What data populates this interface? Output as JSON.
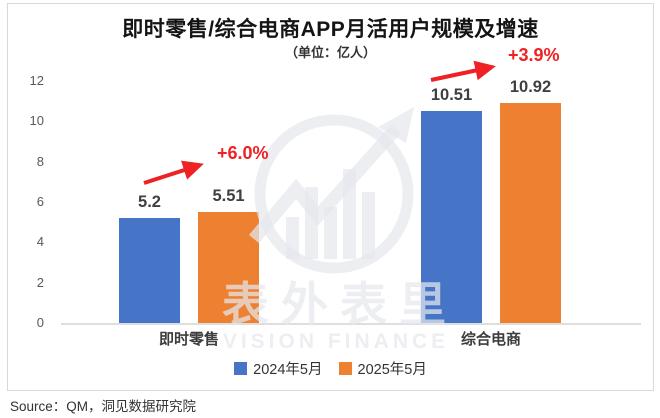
{
  "title": "即时零售/综合电商APP月活用户规模及增速",
  "subtitle": "（单位：亿人）",
  "source": "Source：QM，洞见数据研究院",
  "watermark": {
    "cn": "表外表里",
    "en": "VISION FINANCE"
  },
  "colors": {
    "series_2024": "#4674C6",
    "series_2025": "#EE8032",
    "growth_red": "#EE2224",
    "axis_text": "#595959",
    "watermark": "rgba(229,232,237,0.72)"
  },
  "chart_data": {
    "type": "bar",
    "categories": [
      "即时零售",
      "综合电商"
    ],
    "series": [
      {
        "name": "2024年5月",
        "color_key": "series_2024",
        "values": [
          5.2,
          10.51
        ],
        "labels": [
          "5.2",
          "10.51"
        ]
      },
      {
        "name": "2025年5月",
        "color_key": "series_2025",
        "values": [
          5.51,
          10.92
        ],
        "labels": [
          "5.51",
          "10.92"
        ]
      }
    ],
    "annotations": [
      {
        "category": "即时零售",
        "label": "+6.0%"
      },
      {
        "category": "综合电商",
        "label": "+3.9%"
      }
    ],
    "xlabel": "",
    "ylabel": "",
    "ylim": [
      0,
      12
    ],
    "yticks": [
      0,
      2,
      4,
      6,
      8,
      10,
      12
    ],
    "grid": false,
    "legend_position": "bottom"
  }
}
